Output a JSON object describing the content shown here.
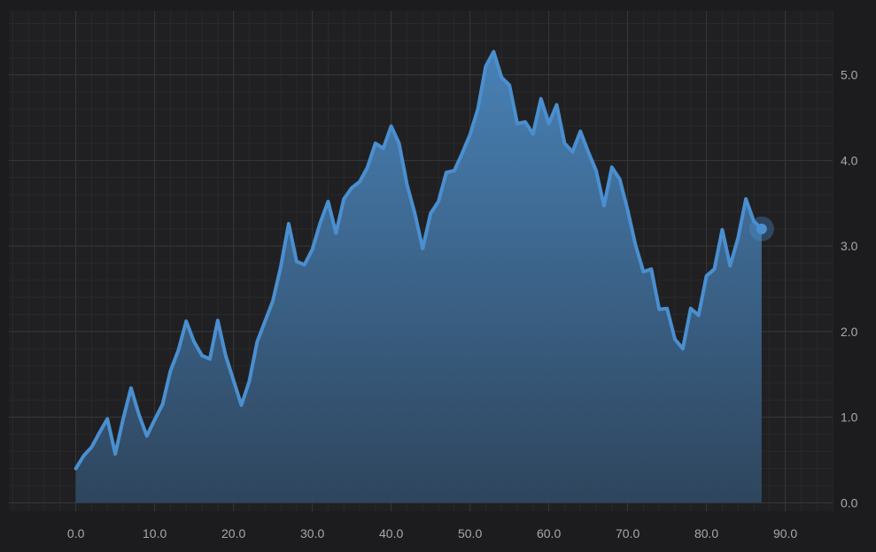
{
  "chart_data": {
    "type": "area",
    "title": "",
    "xlabel": "",
    "ylabel": "",
    "xlim": [
      -8.5,
      96
    ],
    "ylim": [
      -0.1,
      5.75
    ],
    "x_ticks": [
      0,
      10,
      20,
      30,
      40,
      50,
      60,
      70,
      80,
      90
    ],
    "x_tick_labels": [
      "0.0",
      "10.0",
      "20.0",
      "30.0",
      "40.0",
      "50.0",
      "60.0",
      "70.0",
      "80.0",
      "90.0"
    ],
    "y_ticks": [
      0,
      1,
      2,
      3,
      4,
      5
    ],
    "y_tick_labels": [
      "0.0",
      "1.0",
      "2.0",
      "3.0",
      "4.0",
      "5.0"
    ],
    "y_axis_position": "right",
    "grid": true,
    "colors": {
      "background": "#1c1c1e",
      "plot_background": "#202022",
      "grid_major": "#37383b",
      "grid_minor": "#28292b",
      "line": "#4a8fd0",
      "fill_top": "#4a86bd",
      "fill_bottom": "#2f4760",
      "marker": "#4a8fd0"
    },
    "series": [
      {
        "x": [
          0,
          1,
          2,
          3,
          4,
          5,
          6,
          7,
          8,
          9,
          10,
          11,
          12,
          13,
          14,
          15,
          16,
          17,
          18,
          19,
          20,
          21,
          22,
          23,
          24,
          25,
          26,
          27,
          28,
          29,
          30,
          31,
          32,
          33,
          34,
          35,
          36,
          37,
          38,
          39,
          40,
          41,
          42,
          43,
          44,
          45,
          46,
          47,
          48,
          49,
          50,
          51,
          52,
          53,
          54,
          55,
          56,
          57,
          58,
          59,
          60,
          61,
          62,
          63,
          64,
          65,
          66,
          67,
          68,
          69,
          70,
          71,
          72,
          73,
          74,
          75,
          76,
          77,
          78,
          79,
          80,
          81,
          82,
          83,
          84,
          85,
          86,
          87
        ],
        "y": [
          0.4,
          0.55,
          0.65,
          0.82,
          0.98,
          0.57,
          0.98,
          1.34,
          1.03,
          0.78,
          0.97,
          1.15,
          1.54,
          1.78,
          2.12,
          1.88,
          1.72,
          1.68,
          2.13,
          1.72,
          1.43,
          1.14,
          1.42,
          1.88,
          2.12,
          2.36,
          2.76,
          3.26,
          2.82,
          2.78,
          2.96,
          3.27,
          3.52,
          3.15,
          3.55,
          3.68,
          3.75,
          3.92,
          4.2,
          4.14,
          4.4,
          4.2,
          3.72,
          3.38,
          2.97,
          3.38,
          3.52,
          3.86,
          3.88,
          4.08,
          4.3,
          4.6,
          5.1,
          5.27,
          4.97,
          4.88,
          4.43,
          4.45,
          4.31,
          4.72,
          4.43,
          4.65,
          4.2,
          4.1,
          4.34,
          4.1,
          3.88,
          3.47,
          3.92,
          3.78,
          3.42,
          3.01,
          2.7,
          2.73,
          2.26,
          2.27,
          1.91,
          1.8,
          2.27,
          2.19,
          2.65,
          2.73,
          3.19,
          2.77,
          3.09,
          3.55,
          3.29,
          3.2
        ]
      }
    ],
    "highlight_point": {
      "x": 87,
      "y": 3.2
    }
  }
}
